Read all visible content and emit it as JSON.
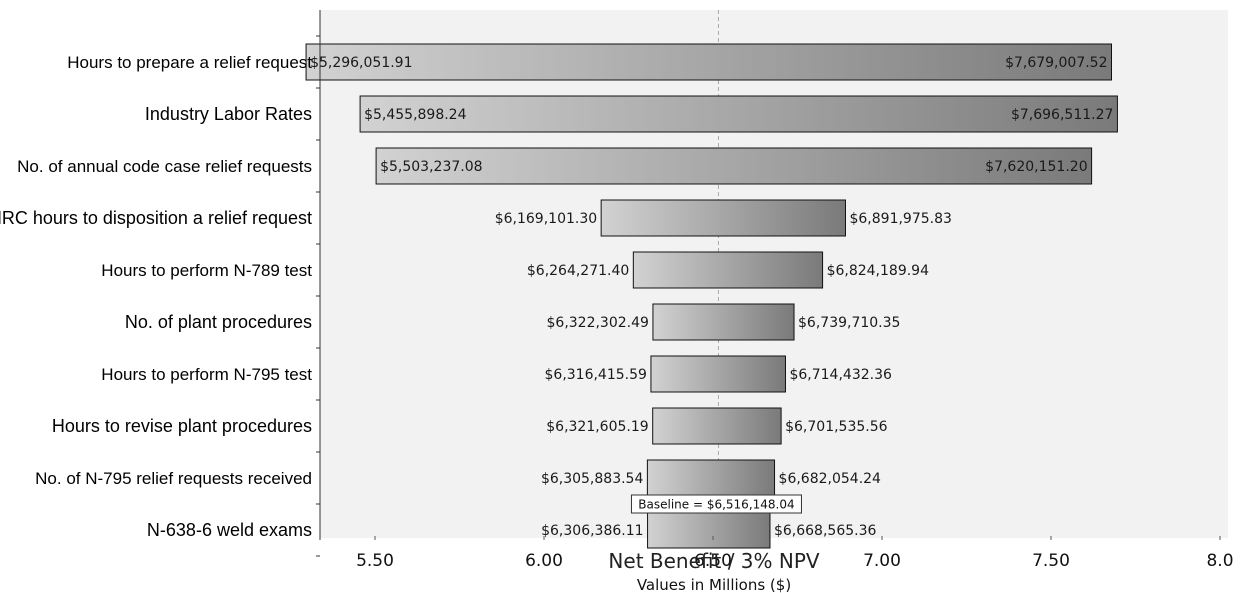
{
  "chart_data": {
    "type": "tornado",
    "xlabel": "Net Benefit / 3% NPV",
    "xsublabel": "Values in Millions ($)",
    "xlim": [
      5.4,
      8.0
    ],
    "xticks": [
      5.5,
      6.0,
      6.5,
      7.0,
      7.5,
      8.0
    ],
    "xtick_labels": [
      "5.50",
      "6.00",
      "6.50",
      "7.00",
      "7.50",
      "8.0"
    ],
    "baseline": 6.51614804,
    "baseline_label": "Baseline = $6,516,148.04",
    "categories": [
      "Hours to prepare a relief request",
      "Industry Labor Rates",
      "No. of annual code case relief requests",
      "NRC hours to disposition a relief request",
      "Hours to perform N-789 test",
      "No. of plant procedures",
      "Hours to perform N-795 test",
      "Hours to revise plant procedures",
      "No. of N-795 relief requests received",
      "N-638-6 weld exams"
    ],
    "low_values": [
      5.29605191,
      5.45589824,
      5.50323708,
      6.1691013,
      6.2642714,
      6.32230249,
      6.31641559,
      6.32160519,
      6.30588354,
      6.30638611
    ],
    "high_values": [
      7.67900752,
      7.69651127,
      7.6201512,
      6.89197583,
      6.82418994,
      6.73971035,
      6.71443236,
      6.70153556,
      6.68205424,
      6.66856536
    ],
    "low_labels": [
      "$5,296,051.91",
      "$5,455,898.24",
      "$5,503,237.08",
      "$6,169,101.30",
      "$6,264,271.40",
      "$6,322,302.49",
      "$6,316,415.59",
      "$6,321,605.19",
      "$6,305,883.54",
      "$6,306,386.11"
    ],
    "high_labels": [
      "$7,679,007.52",
      "$7,696,511.27",
      "$7,620,151.20",
      "$6,891,975.83",
      "$6,824,189.94",
      "$6,739,710.35",
      "$6,714,432.36",
      "$6,701,535.56",
      "$6,682,054.24",
      "$6,668,565.36"
    ],
    "colors": {
      "plot_bg": "#f2f2f2",
      "bar_light": "#cfcfcf",
      "bar_dark": "#7c7c7c",
      "bar_stroke": "#111111",
      "baseline_line": "#aaaaaa"
    }
  }
}
